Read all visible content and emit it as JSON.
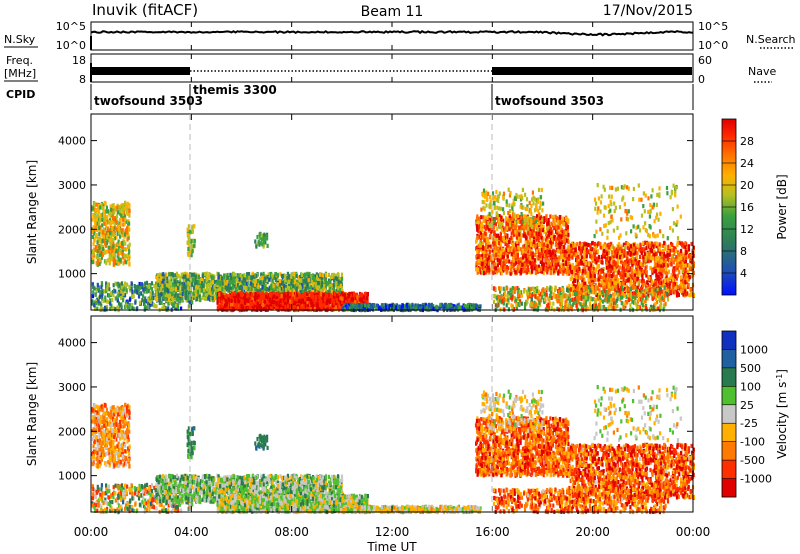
{
  "header": {
    "station": "Inuvik (fitACF)",
    "beam": "Beam 11",
    "date": "17/Nov/2015"
  },
  "chart_data": [
    {
      "type": "line",
      "panel": "noise",
      "series": [
        {
          "name": "N.Sky",
          "style": "solid"
        },
        {
          "name": "N.Search",
          "style": "dotted"
        }
      ],
      "y_ticks_left": [
        "10^5",
        "10^0"
      ],
      "y_ticks_right": [
        "10^5",
        "10^0"
      ],
      "y_scale": "log"
    },
    {
      "type": "line",
      "panel": "frequency",
      "series": [
        {
          "name": "Freq. [MHz]",
          "style": "solid",
          "ylim": [
            8,
            18
          ]
        },
        {
          "name": "Nave",
          "style": "dotted",
          "ylim": [
            0,
            60
          ]
        }
      ],
      "freq_label": "Freq.",
      "freq_unit": "[MHz]",
      "y_ticks_left": [
        "18",
        "8"
      ],
      "y_ticks_right": [
        "60",
        "0"
      ]
    },
    {
      "type": "table",
      "panel": "cpid",
      "label": "CPID",
      "segments": [
        {
          "name": "twofsound 3503",
          "start_h": 0,
          "end_h": 4
        },
        {
          "name": "themis 3300",
          "start_h": 4,
          "end_h": 16
        },
        {
          "name": "twofsound 3503",
          "start_h": 16,
          "end_h": 24
        }
      ]
    },
    {
      "type": "heatmap",
      "panel": "power",
      "ylabel": "Slant Range [km]",
      "ylim": [
        180,
        4600
      ],
      "y_ticks": [
        1000,
        2000,
        3000,
        4000
      ],
      "colorbar_label": "Power [dB]",
      "colorbar_ticks": [
        4,
        8,
        12,
        16,
        20,
        24,
        28
      ],
      "colors": [
        "#0010ff",
        "#2050b0",
        "#2e7d5a",
        "#3aa040",
        "#b8c020",
        "#ffb000",
        "#ff7000",
        "#ff2a00",
        "#e00000"
      ]
    },
    {
      "type": "heatmap",
      "panel": "velocity",
      "ylabel": "Slant Range [km]",
      "ylim": [
        180,
        4600
      ],
      "y_ticks": [
        1000,
        2000,
        3000,
        4000
      ],
      "colorbar_label": "Velocity [m s^-1]",
      "colorbar_ticks": [
        1000,
        500,
        100,
        25,
        -25,
        -100,
        -500,
        -1000
      ],
      "colors": [
        "#1030c0",
        "#2060a0",
        "#2a7a50",
        "#50c030",
        "#c8c8c8",
        "#ffb000",
        "#ff7a00",
        "#ff3000",
        "#e00000"
      ],
      "xlabel": "Time UT",
      "x_ticks": [
        "00:00",
        "04:00",
        "08:00",
        "12:00",
        "16:00",
        "20:00",
        "00:00"
      ]
    }
  ]
}
